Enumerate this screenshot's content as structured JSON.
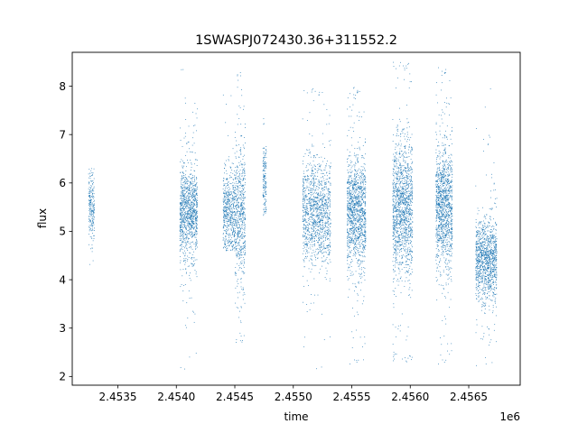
{
  "chart_data": {
    "type": "scatter",
    "title": "1SWASPJ072430.36+311552.2",
    "xlabel": "time",
    "ylabel": "flux",
    "x_offset_label": "1e6",
    "xlim": [
      2453110,
      2456940
    ],
    "ylim": [
      1.82,
      8.7
    ],
    "x_ticks": [
      2453500,
      2454000,
      2454500,
      2455000,
      2455500,
      2456000,
      2456500
    ],
    "x_tick_labels": [
      "2.4535",
      "2.4540",
      "2.4545",
      "2.4550",
      "2.4555",
      "2.4560",
      "2.4565"
    ],
    "y_ticks": [
      2,
      3,
      4,
      5,
      6,
      7,
      8
    ],
    "y_tick_labels": [
      "2",
      "3",
      "4",
      "5",
      "6",
      "7",
      "8"
    ],
    "grid": false,
    "marker_color": "#1f77b4",
    "clusters": [
      {
        "x_range": [
          2453250,
          2453300
        ],
        "y_center": 5.5,
        "y_spread": 0.35,
        "y_min": 4.3,
        "y_max": 6.3,
        "n": 220
      },
      {
        "x_range": [
          2454030,
          2454180
        ],
        "y_center": 5.4,
        "y_spread": 0.45,
        "y_min": 2.1,
        "y_max": 8.5,
        "n": 1100
      },
      {
        "x_range": [
          2454400,
          2454500
        ],
        "y_center": 5.4,
        "y_spread": 0.4,
        "y_min": 4.6,
        "y_max": 7.9,
        "n": 520
      },
      {
        "x_range": [
          2454500,
          2454590
        ],
        "y_center": 5.3,
        "y_spread": 0.7,
        "y_min": 2.7,
        "y_max": 8.4,
        "n": 620
      },
      {
        "x_range": [
          2454740,
          2454770
        ],
        "y_center": 6.1,
        "y_spread": 0.35,
        "y_min": 5.3,
        "y_max": 7.4,
        "n": 160
      },
      {
        "x_range": [
          2455080,
          2455320
        ],
        "y_center": 5.4,
        "y_spread": 0.5,
        "y_min": 2.1,
        "y_max": 8.0,
        "n": 1250
      },
      {
        "x_range": [
          2455460,
          2455620
        ],
        "y_center": 5.4,
        "y_spread": 0.55,
        "y_min": 2.2,
        "y_max": 8.0,
        "n": 1300
      },
      {
        "x_range": [
          2455850,
          2456020
        ],
        "y_center": 5.5,
        "y_spread": 0.65,
        "y_min": 2.3,
        "y_max": 8.5,
        "n": 1400
      },
      {
        "x_range": [
          2456220,
          2456360
        ],
        "y_center": 5.5,
        "y_spread": 0.6,
        "y_min": 2.2,
        "y_max": 8.4,
        "n": 1250
      },
      {
        "x_range": [
          2456560,
          2456740
        ],
        "y_center": 4.4,
        "y_spread": 0.4,
        "y_min": 2.2,
        "y_max": 8.2,
        "n": 1150
      }
    ]
  }
}
